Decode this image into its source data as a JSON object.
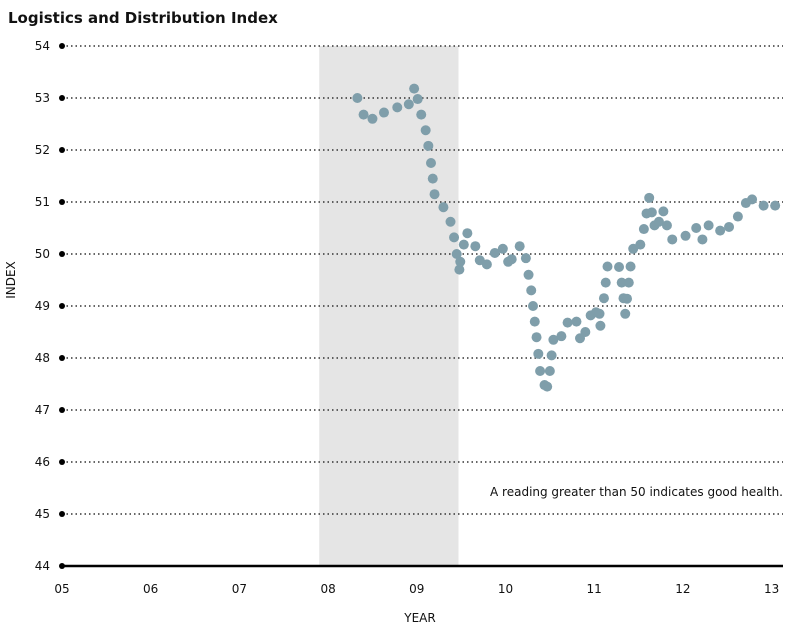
{
  "chart_data": {
    "type": "scatter",
    "title": "Logistics and Distribution Index",
    "xlabel": "YEAR",
    "ylabel": "INDEX",
    "xlim": [
      5,
      13.1
    ],
    "ylim": [
      44,
      54
    ],
    "x_ticks": [
      5,
      6,
      7,
      8,
      9,
      10,
      11,
      12,
      13
    ],
    "x_tick_labels": [
      "05",
      "06",
      "07",
      "08",
      "09",
      "10",
      "11",
      "12",
      "13"
    ],
    "y_ticks": [
      44,
      45,
      46,
      47,
      48,
      49,
      50,
      51,
      52,
      53,
      54
    ],
    "shaded_region": [
      7.9,
      9.47
    ],
    "grid": "horizontal dotted",
    "annotation": "A reading greater than 50 indicates good health.",
    "colors": {
      "points": "#7f9eaa",
      "shading": "#e5e5e5",
      "axis": "#000000"
    },
    "points": [
      [
        8.33,
        53.0
      ],
      [
        8.4,
        52.68
      ],
      [
        8.5,
        52.6
      ],
      [
        8.63,
        52.72
      ],
      [
        8.78,
        52.82
      ],
      [
        8.91,
        52.88
      ],
      [
        8.97,
        53.18
      ],
      [
        9.01,
        52.98
      ],
      [
        9.05,
        52.68
      ],
      [
        9.1,
        52.38
      ],
      [
        9.13,
        52.08
      ],
      [
        9.16,
        51.75
      ],
      [
        9.18,
        51.45
      ],
      [
        9.2,
        51.15
      ],
      [
        9.3,
        50.9
      ],
      [
        9.38,
        50.62
      ],
      [
        9.42,
        50.32
      ],
      [
        9.45,
        50.0
      ],
      [
        9.48,
        49.7
      ],
      [
        9.49,
        49.85
      ],
      [
        9.53,
        50.18
      ],
      [
        9.57,
        50.4
      ],
      [
        9.66,
        50.15
      ],
      [
        9.71,
        49.88
      ],
      [
        9.79,
        49.8
      ],
      [
        9.88,
        50.02
      ],
      [
        9.97,
        50.1
      ],
      [
        10.03,
        49.85
      ],
      [
        10.07,
        49.9
      ],
      [
        10.16,
        50.15
      ],
      [
        10.23,
        49.92
      ],
      [
        10.26,
        49.6
      ],
      [
        10.29,
        49.3
      ],
      [
        10.31,
        49.0
      ],
      [
        10.33,
        48.7
      ],
      [
        10.35,
        48.4
      ],
      [
        10.37,
        48.08
      ],
      [
        10.39,
        47.75
      ],
      [
        10.44,
        47.48
      ],
      [
        10.47,
        47.45
      ],
      [
        10.5,
        47.75
      ],
      [
        10.52,
        48.05
      ],
      [
        10.54,
        48.35
      ],
      [
        10.63,
        48.42
      ],
      [
        10.7,
        48.68
      ],
      [
        10.8,
        48.7
      ],
      [
        10.84,
        48.38
      ],
      [
        10.9,
        48.5
      ],
      [
        10.96,
        48.82
      ],
      [
        11.02,
        48.88
      ],
      [
        11.06,
        48.85
      ],
      [
        11.07,
        48.62
      ],
      [
        11.11,
        49.15
      ],
      [
        11.13,
        49.45
      ],
      [
        11.15,
        49.76
      ],
      [
        11.28,
        49.75
      ],
      [
        11.31,
        49.45
      ],
      [
        11.33,
        49.15
      ],
      [
        11.35,
        48.85
      ],
      [
        11.37,
        49.14
      ],
      [
        11.39,
        49.45
      ],
      [
        11.41,
        49.76
      ],
      [
        11.44,
        50.1
      ],
      [
        11.52,
        50.18
      ],
      [
        11.56,
        50.48
      ],
      [
        11.59,
        50.78
      ],
      [
        11.62,
        51.08
      ],
      [
        11.65,
        50.8
      ],
      [
        11.68,
        50.55
      ],
      [
        11.73,
        50.62
      ],
      [
        11.78,
        50.82
      ],
      [
        11.82,
        50.55
      ],
      [
        11.88,
        50.28
      ],
      [
        12.03,
        50.35
      ],
      [
        12.15,
        50.5
      ],
      [
        12.22,
        50.28
      ],
      [
        12.29,
        50.55
      ],
      [
        12.42,
        50.45
      ],
      [
        12.52,
        50.52
      ],
      [
        12.62,
        50.72
      ],
      [
        12.71,
        50.98
      ],
      [
        12.78,
        51.05
      ],
      [
        12.91,
        50.93
      ],
      [
        13.04,
        50.93
      ]
    ]
  }
}
